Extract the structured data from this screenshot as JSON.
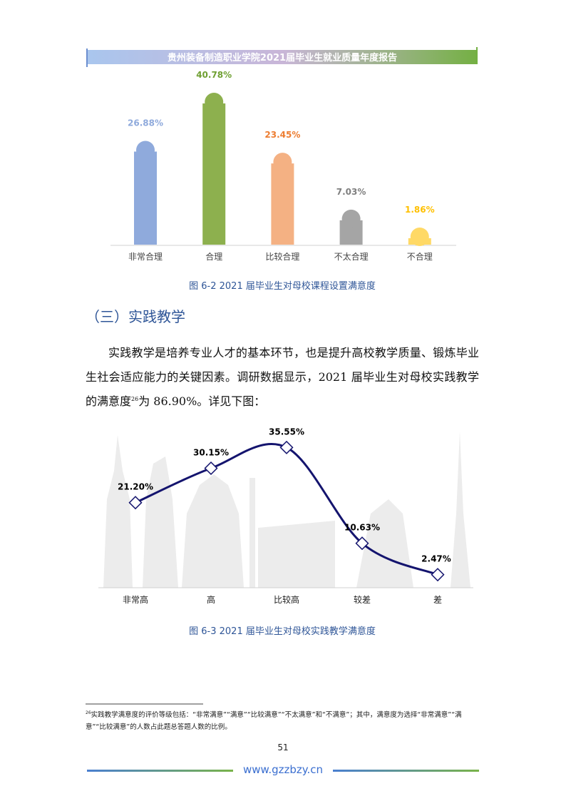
{
  "header": {
    "title": "贵州装备制造职业学院2021届毕业生就业质量年度报告"
  },
  "chart_data": [
    {
      "type": "bar",
      "categories": [
        "非常合理",
        "合理",
        "比较合理",
        "不太合理",
        "不合理"
      ],
      "values": [
        26.88,
        40.78,
        23.45,
        7.03,
        1.86
      ],
      "value_labels": [
        "26.88%",
        "40.78%",
        "23.45%",
        "7.03%",
        "1.86%"
      ],
      "colors": [
        "#8faadc",
        "#8db04e",
        "#f4b183",
        "#a5a5a5",
        "#ffd966"
      ],
      "label_colors": [
        "#8faadc",
        "#70a033",
        "#ed7d31",
        "#7f7f7f",
        "#ffc000"
      ],
      "caption": "图 6-2 2021 届毕业生对母校课程设置满意度"
    },
    {
      "type": "line",
      "categories": [
        "非常高",
        "高",
        "比较高",
        "较差",
        "差"
      ],
      "values": [
        21.2,
        30.15,
        35.55,
        10.63,
        2.47
      ],
      "value_labels": [
        "21.20%",
        "30.15%",
        "35.55%",
        "10.63%",
        "2.47%"
      ],
      "color": "#14146e",
      "caption": "图 6-3 2021 届毕业生对母校实践教学满意度"
    }
  ],
  "section": {
    "heading": "（三）实践教学",
    "paragraph": [
      "实践教学是培养专业人才的基本环节，也是提升高校教学质量、锻炼毕业生社会适应能力的关键因素。调研数据显示，2021 届毕业生对母校实践教学的满意度",
      "26",
      "为 86.90%。详见下图："
    ]
  },
  "footnote": {
    "number": "26",
    "text": "实践教学满意度的评价等级包括：“非常满意”“满意”“比较满意”“不太满意”和“不满意”；其中，满意度为选择“非常满意”“满意”“比较满意”的人数占此题总答题人数的比例。"
  },
  "page_number": "51",
  "footer": {
    "url": "www.gzzbzy.cn"
  }
}
